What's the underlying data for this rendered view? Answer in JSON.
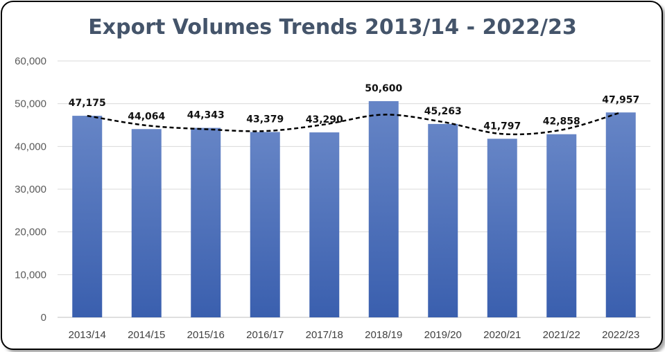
{
  "chart_data": {
    "type": "bar",
    "title": "Export Volumes Trends 2013/14 - 2022/23",
    "categories": [
      "2013/14",
      "2014/15",
      "2015/16",
      "2016/17",
      "2017/18",
      "2018/19",
      "2019/20",
      "2020/21",
      "2021/22",
      "2022/23"
    ],
    "values": [
      47175,
      44064,
      44343,
      43379,
      43290,
      50600,
      45263,
      41797,
      42858,
      47957
    ],
    "data_labels": [
      "47,175",
      "44,064",
      "44,343",
      "43,379",
      "43,290",
      "50,600",
      "45,263",
      "41,797",
      "42,858",
      "47,957"
    ],
    "ylim": [
      0,
      60000
    ],
    "yticks": [
      0,
      10000,
      20000,
      30000,
      40000,
      50000,
      60000
    ],
    "ytick_labels": [
      "0",
      "10,000",
      "20,000",
      "30,000",
      "40,000",
      "50,000",
      "60,000"
    ],
    "xlabel": "",
    "ylabel": "",
    "grid": true,
    "trendline": {
      "style": "dashed",
      "type": "polynomial"
    },
    "colors": {
      "bar_top": "#6685c6",
      "bar_bottom": "#3a5fae",
      "grid": "#d9d9d9",
      "title": "#44546a",
      "trend": "#000000"
    }
  }
}
